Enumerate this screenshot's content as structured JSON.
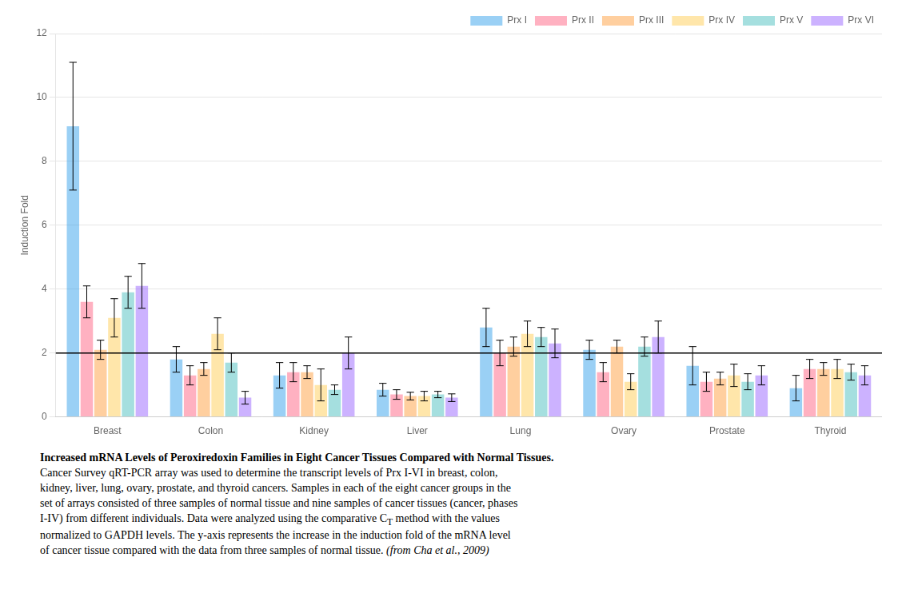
{
  "chart_data": {
    "type": "bar",
    "categories": [
      "Breast",
      "Colon",
      "Kidney",
      "Liver",
      "Lung",
      "Ovary",
      "Prostate",
      "Thyroid"
    ],
    "series": [
      {
        "name": "Prx I",
        "values": [
          9.1,
          1.8,
          1.3,
          0.85,
          2.8,
          2.1,
          1.6,
          0.9
        ],
        "errors": [
          2.0,
          0.4,
          0.4,
          0.2,
          0.6,
          0.3,
          0.6,
          0.4
        ]
      },
      {
        "name": "Prx II",
        "values": [
          3.6,
          1.3,
          1.4,
          0.7,
          2.0,
          1.4,
          1.1,
          1.5
        ],
        "errors": [
          0.5,
          0.3,
          0.3,
          0.15,
          0.4,
          0.3,
          0.3,
          0.3
        ]
      },
      {
        "name": "Prx III",
        "values": [
          2.1,
          1.5,
          1.4,
          0.65,
          2.2,
          2.2,
          1.2,
          1.5
        ],
        "errors": [
          0.3,
          0.2,
          0.2,
          0.12,
          0.3,
          0.2,
          0.2,
          0.2
        ]
      },
      {
        "name": "Prx IV",
        "values": [
          3.1,
          2.6,
          1.0,
          0.65,
          2.6,
          1.1,
          1.3,
          1.5
        ],
        "errors": [
          0.6,
          0.5,
          0.5,
          0.15,
          0.4,
          0.25,
          0.35,
          0.3
        ]
      },
      {
        "name": "Prx V",
        "values": [
          3.9,
          1.7,
          0.85,
          0.7,
          2.5,
          2.2,
          1.1,
          1.4
        ],
        "errors": [
          0.5,
          0.3,
          0.15,
          0.1,
          0.3,
          0.3,
          0.25,
          0.25
        ]
      },
      {
        "name": "Prx VI",
        "values": [
          4.1,
          0.6,
          2.0,
          0.6,
          2.3,
          2.5,
          1.3,
          1.3
        ],
        "errors": [
          0.7,
          0.2,
          0.5,
          0.12,
          0.45,
          0.5,
          0.3,
          0.3
        ]
      }
    ],
    "y_label": "Induction Fold",
    "ylim": [
      0,
      12
    ],
    "yticks": [
      0,
      2,
      4,
      6,
      8,
      10,
      12
    ],
    "reference_line": 2,
    "grid": true,
    "legend": "upper right",
    "caption": [
      [
        {
          "text": "Increased mRNA Levels of Peroxiredoxin Families in Eight Cancer Tissues Compared with Normal Tissues.",
          "bold": true
        }
      ],
      [
        {
          "text": "Cancer Survey qRT-PCR array was used to determine the transcript levels of Prx I-VI in breast, colon,"
        }
      ],
      [
        {
          "text": "kidney, liver, lung, ovary, prostate, and thyroid cancers. Samples in each of the eight cancer groups in the"
        }
      ],
      [
        {
          "text": "set of arrays consisted of three samples of normal tissue and nine samples of cancer tissues (cancer, phases"
        }
      ],
      [
        {
          "text": "I-IV) from different individuals. Data were analyzed using the comparative C"
        },
        {
          "text": "T",
          "sub": true
        },
        {
          "text": " method with the values"
        }
      ],
      [
        {
          "text": "normalized to GAPDH levels. The y-axis represents the increase in the induction fold of the mRNA level"
        }
      ],
      [
        {
          "text": "of cancer tissue compared with the data from three samples of normal tissue."
        },
        {
          "text": " (from Cha et al., 2009)",
          "italic": true
        }
      ]
    ]
  }
}
